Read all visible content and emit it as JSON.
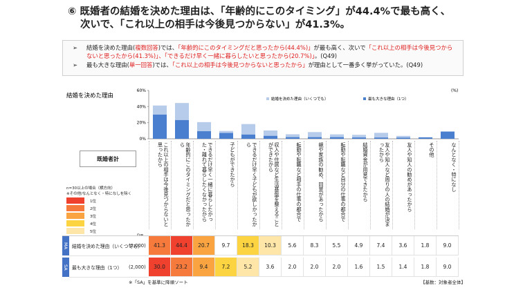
{
  "header": {
    "title_lines": [
      "⑥ 既婚者の結婚を決めた理由は、「年齢的にこのタイミング」が44.4%で最も高く、",
      "次いで、「これ以上の相手は今後見つからない」が41.3%。"
    ]
  },
  "bullets": [
    [
      {
        "text": "結婚を決めた理由("
      },
      {
        "text": "複数回答",
        "color": "#e02020"
      },
      {
        "text": ")では、"
      },
      {
        "text": "「年齢的にこのタイミングだと思ったから(44.4%)」",
        "color": "#e02020"
      },
      {
        "text": "が最も高く、次いで"
      },
      {
        "text": "「これ以上の相手は今後見つからないと思ったから(41.3%)」、「できるだけ早く一緒に暮らしたいと思ったから(20.7%)」",
        "color": "#e02020"
      },
      {
        "text": "。(Q49)"
      }
    ],
    [
      {
        "text": "最も大きな理由("
      },
      {
        "text": "単一回答",
        "color": "#e02020"
      },
      {
        "text": ")では、"
      },
      {
        "text": "「これ以上の相手は今後見つからないと思ったから」",
        "color": "#e02020"
      },
      {
        "text": "が理由として一番多く挙がっていた。(Q49)"
      }
    ]
  ],
  "chart_data": {
    "type": "bar",
    "title": "結婚を決めた理由",
    "unit_label": "(%)",
    "categories": [
      "これ以上の相手は今後見つからないと思ったから",
      "年齢的にこのタイミングだと思ったから",
      "できるだけ早く一緒に暮らしたかった・離れて暮らしたくなかったから",
      "子どもができたから",
      "できるだけ早く子どもが欲しかったから",
      "収入や住居など生活基盤を整えることができたから",
      "転勤や転職など相手の仕事の都合で",
      "親や家族の勧め、同意があったから",
      "転勤や転職など自分の仕事の都合で",
      "結婚資金が用意できたから",
      "友人や知人など周りの人の結婚が決まったから",
      "友人や知人の勧めがあったから",
      "その他",
      "なんとなく・特になし"
    ],
    "series": [
      {
        "name": "結婚を決めた理由（いくつでも）",
        "color": "#b7cbea",
        "values": [
          41.3,
          44.4,
          20.7,
          9.7,
          18.3,
          10.3,
          5.6,
          8.3,
          5.5,
          4.9,
          7.4,
          3.6,
          1.8,
          9.0
        ]
      },
      {
        "name": "最も大きな理由（1つ）",
        "color": "#4a7fd0",
        "values": [
          30.0,
          23.2,
          9.4,
          7.2,
          5.2,
          3.6,
          2.0,
          2.0,
          2.0,
          1.6,
          1.5,
          1.4,
          1.8,
          9.0
        ]
      }
    ],
    "ylim": [
      0,
      60
    ],
    "yticks": [
      {
        "value": 0,
        "label": "0%"
      },
      {
        "value": 20,
        "label": "20%"
      },
      {
        "value": 40,
        "label": "40%"
      },
      {
        "value": 60,
        "label": "60%"
      }
    ]
  },
  "side": {
    "group": "既婚者計",
    "note_lines": [
      "n=30以上の場合（横方向）",
      "※その他/なんとなく・特になしを除く"
    ],
    "rank_legend": [
      {
        "label": "1位",
        "color": "#f0402e"
      },
      {
        "label": "2位",
        "color": "#f67a3c"
      },
      {
        "label": "3位",
        "color": "#f9a441"
      },
      {
        "label": "4位",
        "color": "#fcd340"
      },
      {
        "label": "5位",
        "color": "#fde6a8"
      }
    ],
    "n_label": "n="
  },
  "table": {
    "rows": [
      {
        "tag": "MA",
        "label": "結婚を決めた理由（いくつでも）",
        "n": "(2,000)",
        "cells": [
          "41.3",
          "44.4",
          "20.7",
          "9.7",
          "18.3",
          "10.3",
          "5.6",
          "8.3",
          "5.5",
          "4.9",
          "7.4",
          "3.6",
          "1.8",
          "9.0"
        ],
        "cell_colors": [
          "#f67a3c",
          "#f0402e",
          "#f9a441",
          null,
          "#fcd340",
          "#fde6a8",
          null,
          null,
          null,
          null,
          null,
          null,
          null,
          null
        ]
      },
      {
        "tag": "SA",
        "label": "最も大きな理由（1つ）",
        "n": "(2,000)",
        "cells": [
          "30.0",
          "23.2",
          "9.4",
          "7.2",
          "5.2",
          "3.6",
          "2.0",
          "2.0",
          "2.0",
          "1.6",
          "1.5",
          "1.4",
          "1.8",
          "9.0"
        ],
        "cell_colors": [
          "#f0402e",
          "#f67a3c",
          "#f9a441",
          "#fcd340",
          "#fde6a8",
          null,
          null,
          null,
          null,
          null,
          null,
          null,
          null,
          null
        ]
      }
    ]
  },
  "footer": {
    "note": "※「SA」を基準に降順ソート",
    "base": "【基数：対象者全体】"
  }
}
